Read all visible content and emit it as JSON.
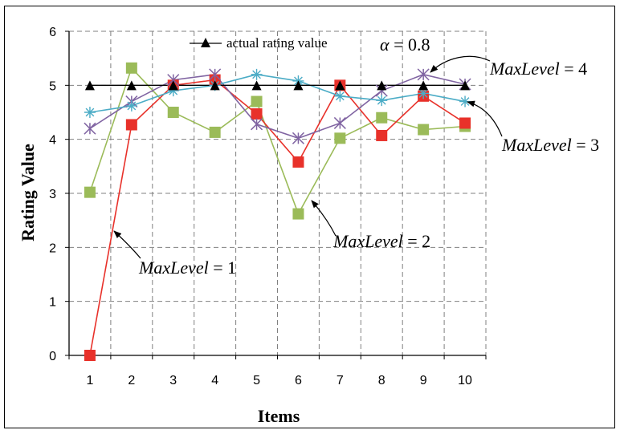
{
  "chart_data": {
    "type": "line",
    "xlabel": "Items",
    "ylabel": "Rating Value",
    "x": [
      1,
      2,
      3,
      4,
      5,
      6,
      7,
      8,
      9,
      10
    ],
    "xlim": [
      0.5,
      10.5
    ],
    "ylim": [
      0,
      6
    ],
    "yticks": [
      0,
      1,
      2,
      3,
      4,
      5,
      6
    ],
    "grid": true,
    "legend": {
      "position": "top",
      "entries": [
        "actual rating value"
      ]
    },
    "series": [
      {
        "name": "actual rating value",
        "color": "#000000",
        "marker": "triangle",
        "values": [
          5,
          5,
          5,
          5,
          5,
          5,
          5,
          5,
          5,
          5
        ]
      },
      {
        "color": "#e8312a",
        "marker": "square",
        "values": [
          0,
          4.27,
          5.0,
          5.1,
          4.47,
          3.58,
          5.0,
          4.07,
          4.8,
          4.3
        ]
      },
      {
        "color": "#9bbb59",
        "marker": "square",
        "values": [
          3.02,
          5.32,
          4.5,
          4.13,
          4.7,
          2.62,
          4.02,
          4.4,
          4.18,
          4.24
        ]
      },
      {
        "color": "#4bacc6",
        "marker": "asterisk",
        "values": [
          4.5,
          4.62,
          4.9,
          5.0,
          5.2,
          5.08,
          4.8,
          4.72,
          4.85,
          4.7
        ]
      },
      {
        "color": "#8064a2",
        "marker": "x",
        "values": [
          4.2,
          4.7,
          5.1,
          5.2,
          4.28,
          4.02,
          4.3,
          4.9,
          5.2,
          5.02
        ]
      }
    ],
    "annotations": [
      {
        "prefix": "α",
        "text": " = 0.8"
      },
      {
        "italic": "MaxLevel",
        "text": " = 4",
        "points_to": {
          "x": 10,
          "y": 5.02
        }
      },
      {
        "italic": "MaxLevel",
        "text": " = 3",
        "points_to": {
          "x": 10,
          "y": 4.7
        }
      },
      {
        "italic": "MaxLevel",
        "text": " = 2",
        "points_to": {
          "x": 6,
          "y": 2.62
        }
      },
      {
        "italic": "MaxLevel",
        "text": " = 1",
        "points_to": {
          "x": 1,
          "y": 1.3
        }
      }
    ]
  }
}
